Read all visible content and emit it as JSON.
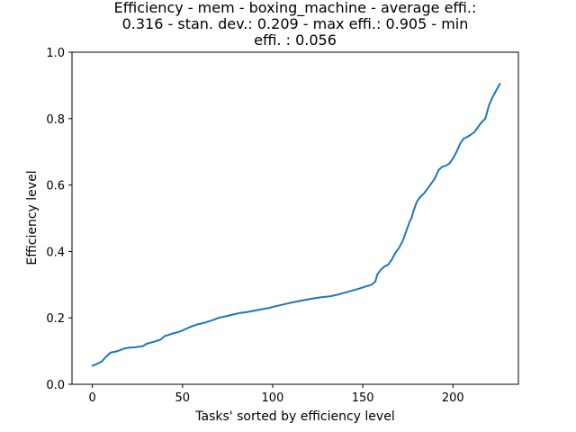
{
  "chart_data": {
    "type": "line",
    "title_lines": [
      "Efficiency - mem - boxing_machine - average effi.:",
      "0.316 - stan. dev.: 0.209 - max effi.: 0.905 - min",
      "effi. : 0.056"
    ],
    "xlabel": "Tasks' sorted by efficiency level",
    "ylabel": "Efficiency level",
    "xlim": [
      -11.3,
      236.3
    ],
    "ylim": [
      0,
      1.0
    ],
    "xticks": [
      0,
      50,
      100,
      150,
      200
    ],
    "yticks": [
      0.0,
      0.2,
      0.4,
      0.6,
      0.8,
      1.0
    ],
    "ytick_labels": [
      "0.0",
      "0.2",
      "0.4",
      "0.6",
      "0.8",
      "1.0"
    ],
    "grid": false,
    "series": [
      {
        "name": "efficiency",
        "color": "#1f77b4",
        "x": [
          0,
          2,
          5,
          8,
          10,
          14,
          18,
          20,
          24,
          28,
          30,
          34,
          38,
          40,
          44,
          48,
          50,
          54,
          58,
          62,
          66,
          70,
          74,
          78,
          82,
          86,
          90,
          94,
          98,
          100,
          104,
          108,
          112,
          116,
          120,
          124,
          128,
          132,
          136,
          140,
          144,
          148,
          152,
          155,
          157,
          158,
          160,
          162,
          164,
          166,
          168,
          170,
          172,
          174,
          176,
          177,
          178,
          180,
          182,
          184,
          186,
          188,
          190,
          192,
          194,
          196,
          198,
          200,
          202,
          204,
          206,
          208,
          210,
          212,
          214,
          216,
          218,
          220,
          222,
          224,
          226
        ],
        "y": [
          0.056,
          0.06,
          0.068,
          0.085,
          0.095,
          0.1,
          0.108,
          0.11,
          0.112,
          0.115,
          0.122,
          0.128,
          0.135,
          0.145,
          0.152,
          0.158,
          0.162,
          0.172,
          0.18,
          0.185,
          0.192,
          0.2,
          0.205,
          0.21,
          0.215,
          0.218,
          0.222,
          0.226,
          0.23,
          0.233,
          0.238,
          0.243,
          0.248,
          0.252,
          0.256,
          0.26,
          0.263,
          0.265,
          0.27,
          0.276,
          0.282,
          0.288,
          0.295,
          0.3,
          0.31,
          0.33,
          0.345,
          0.355,
          0.36,
          0.375,
          0.395,
          0.41,
          0.43,
          0.46,
          0.49,
          0.5,
          0.52,
          0.55,
          0.565,
          0.575,
          0.59,
          0.605,
          0.62,
          0.645,
          0.655,
          0.658,
          0.665,
          0.68,
          0.7,
          0.725,
          0.74,
          0.745,
          0.752,
          0.76,
          0.775,
          0.79,
          0.8,
          0.84,
          0.865,
          0.885,
          0.905
        ]
      }
    ]
  }
}
